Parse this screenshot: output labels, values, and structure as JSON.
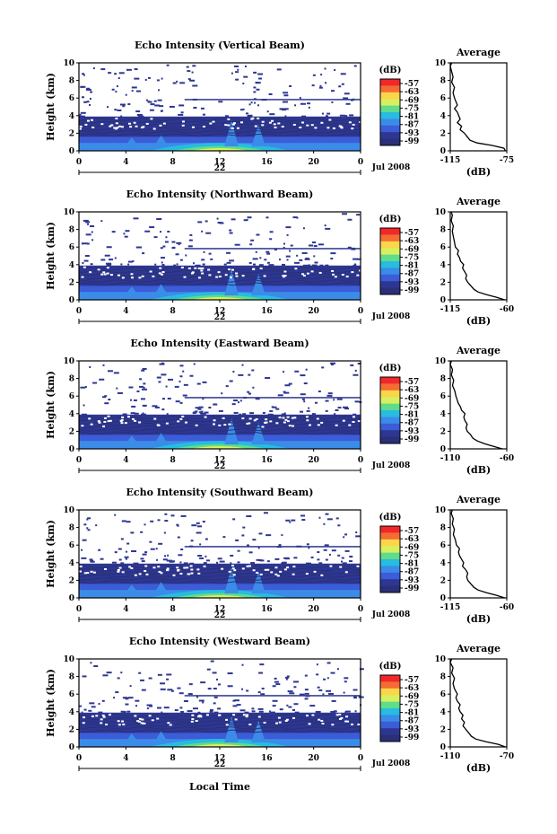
{
  "chart_data": {
    "type": "heatmap",
    "panels": [
      {
        "title": "Echo Intensity (Vertical Beam)",
        "cb_ticks": [
          "-57",
          "-63",
          "-69",
          "-75",
          "-81",
          "-87",
          "-93",
          "-99"
        ],
        "avg_xticks": [
          "-115",
          "-75"
        ],
        "avg_xlim": [
          -115,
          -75
        ],
        "avg_profile": [
          [
            0,
            -76
          ],
          [
            0.3,
            -77
          ],
          [
            0.6,
            -85
          ],
          [
            0.9,
            -96
          ],
          [
            1.2,
            -101
          ],
          [
            1.6,
            -103
          ],
          [
            2.0,
            -105
          ],
          [
            2.4,
            -108
          ],
          [
            2.8,
            -107
          ],
          [
            3.2,
            -110
          ],
          [
            3.6,
            -108
          ],
          [
            4.0,
            -109
          ],
          [
            4.4,
            -110
          ],
          [
            4.8,
            -112
          ],
          [
            5.2,
            -110
          ],
          [
            5.6,
            -111
          ],
          [
            6.0,
            -112
          ],
          [
            6.6,
            -113
          ],
          [
            7.2,
            -112
          ],
          [
            7.8,
            -114
          ],
          [
            8.4,
            -113
          ],
          [
            9.0,
            -114
          ],
          [
            9.6,
            -115
          ],
          [
            10,
            -114
          ]
        ]
      },
      {
        "title": "Echo Intensity (Northward Beam)",
        "cb_ticks": [
          "-57",
          "-63",
          "-69",
          "-75",
          "-81",
          "-87",
          "-93",
          "-99"
        ],
        "avg_xticks": [
          "-115",
          "-60"
        ],
        "avg_xlim": [
          -115,
          -60
        ],
        "avg_profile": [
          [
            0,
            -62
          ],
          [
            0.3,
            -70
          ],
          [
            0.6,
            -80
          ],
          [
            0.9,
            -88
          ],
          [
            1.2,
            -92
          ],
          [
            1.6,
            -95
          ],
          [
            2.0,
            -98
          ],
          [
            2.4,
            -100
          ],
          [
            2.8,
            -99
          ],
          [
            3.2,
            -101
          ],
          [
            3.6,
            -103
          ],
          [
            4.0,
            -102
          ],
          [
            4.4,
            -105
          ],
          [
            4.8,
            -106
          ],
          [
            5.2,
            -108
          ],
          [
            5.6,
            -107
          ],
          [
            6.0,
            -110
          ],
          [
            6.6,
            -111
          ],
          [
            7.2,
            -112
          ],
          [
            7.8,
            -113
          ],
          [
            8.4,
            -112
          ],
          [
            9.0,
            -114
          ],
          [
            9.6,
            -113
          ],
          [
            10,
            -114
          ]
        ]
      },
      {
        "title": "Echo Intensity (Eastward Beam)",
        "cb_ticks": [
          "-57",
          "-63",
          "-69",
          "-75",
          "-81",
          "-87",
          "-93",
          "-99"
        ],
        "avg_xticks": [
          "-110",
          "-60"
        ],
        "avg_xlim": [
          -110,
          -60
        ],
        "avg_profile": [
          [
            0,
            -64
          ],
          [
            0.3,
            -72
          ],
          [
            0.6,
            -80
          ],
          [
            0.9,
            -86
          ],
          [
            1.2,
            -90
          ],
          [
            1.6,
            -92
          ],
          [
            2.0,
            -95
          ],
          [
            2.4,
            -96
          ],
          [
            2.8,
            -95
          ],
          [
            3.2,
            -97
          ],
          [
            3.6,
            -98
          ],
          [
            4.0,
            -97
          ],
          [
            4.4,
            -100
          ],
          [
            4.8,
            -101
          ],
          [
            5.2,
            -103
          ],
          [
            5.6,
            -104
          ],
          [
            6.0,
            -105
          ],
          [
            6.6,
            -106
          ],
          [
            7.2,
            -108
          ],
          [
            7.8,
            -107
          ],
          [
            8.4,
            -109
          ],
          [
            9.0,
            -108
          ],
          [
            9.6,
            -110
          ],
          [
            10,
            -109
          ]
        ]
      },
      {
        "title": "Echo Intensity (Southward Beam)",
        "cb_ticks": [
          "-57",
          "-63",
          "-69",
          "-75",
          "-81",
          "-87",
          "-93",
          "-99"
        ],
        "avg_xticks": [
          "-115",
          "-60"
        ],
        "avg_xlim": [
          -115,
          -60
        ],
        "avg_profile": [
          [
            0,
            -62
          ],
          [
            0.3,
            -70
          ],
          [
            0.6,
            -80
          ],
          [
            0.9,
            -88
          ],
          [
            1.2,
            -92
          ],
          [
            1.6,
            -95
          ],
          [
            2.0,
            -98
          ],
          [
            2.4,
            -99
          ],
          [
            2.8,
            -98
          ],
          [
            3.2,
            -100
          ],
          [
            3.6,
            -103
          ],
          [
            4.0,
            -102
          ],
          [
            4.4,
            -104
          ],
          [
            4.8,
            -106
          ],
          [
            5.2,
            -107
          ],
          [
            5.6,
            -106
          ],
          [
            6.0,
            -109
          ],
          [
            6.6,
            -110
          ],
          [
            7.2,
            -112
          ],
          [
            7.8,
            -111
          ],
          [
            8.4,
            -113
          ],
          [
            9.0,
            -112
          ],
          [
            9.6,
            -114
          ],
          [
            10,
            -113
          ]
        ]
      },
      {
        "title": "Echo Intensity (Westward Beam)",
        "cb_ticks": [
          "-57",
          "-63",
          "-69",
          "-75",
          "-81",
          "-87",
          "-93",
          "-99"
        ],
        "avg_xticks": [
          "-110",
          "-70"
        ],
        "avg_xlim": [
          -110,
          -70
        ],
        "avg_profile": [
          [
            0,
            -71
          ],
          [
            0.3,
            -76
          ],
          [
            0.6,
            -85
          ],
          [
            0.9,
            -92
          ],
          [
            1.2,
            -95
          ],
          [
            1.6,
            -97
          ],
          [
            2.0,
            -99
          ],
          [
            2.4,
            -101
          ],
          [
            2.8,
            -100
          ],
          [
            3.2,
            -102
          ],
          [
            3.6,
            -101
          ],
          [
            4.0,
            -103
          ],
          [
            4.4,
            -104
          ],
          [
            4.8,
            -103
          ],
          [
            5.2,
            -105
          ],
          [
            5.6,
            -106
          ],
          [
            6.0,
            -105
          ],
          [
            6.6,
            -107
          ],
          [
            7.2,
            -108
          ],
          [
            7.8,
            -107
          ],
          [
            8.4,
            -109
          ],
          [
            9.0,
            -108
          ],
          [
            9.6,
            -110
          ],
          [
            10,
            -109
          ]
        ]
      }
    ],
    "xticks": [
      "0",
      "4",
      "8",
      "12",
      "16",
      "20",
      "0"
    ],
    "xlim": [
      0,
      24
    ],
    "yticks": [
      "0",
      "2",
      "4",
      "6",
      "8",
      "10"
    ],
    "ylim": [
      0,
      10
    ],
    "ylabel": "Height (km)",
    "day_label": "22",
    "month_label": "Jul 2008",
    "cb_unit": "(dB)",
    "avg_title": "Average",
    "avg_xlabel": "(dB)",
    "xlabel": "Local Time",
    "colors": [
      "#f0282a",
      "#f46c33",
      "#fbd54a",
      "#d8f060",
      "#5fdc8c",
      "#28bce0",
      "#3a8ce8",
      "#3c5cd8",
      "#2d3791",
      "#2a2f78"
    ]
  }
}
